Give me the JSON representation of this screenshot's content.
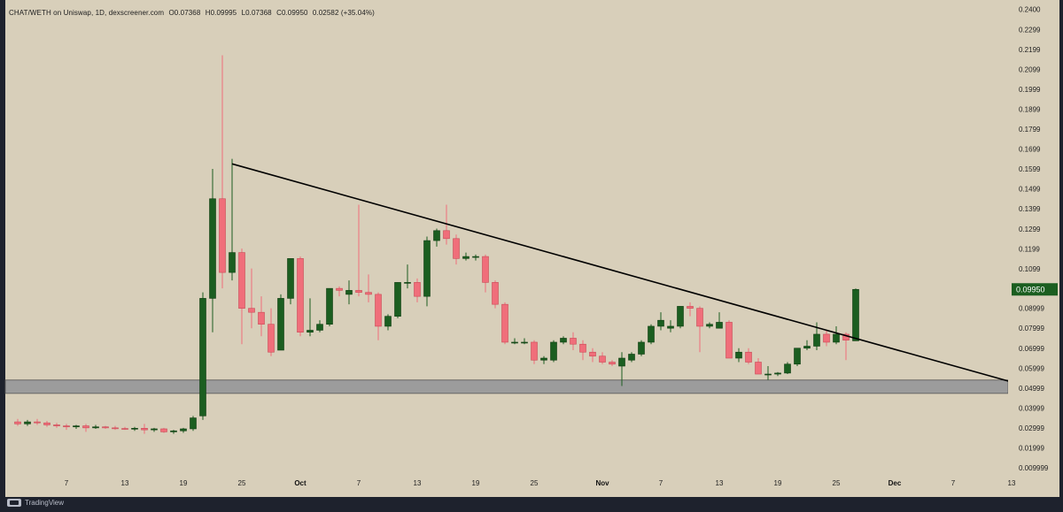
{
  "legend": {
    "symbol": "CHAT/WETH on Uniswap, 1D, dexscreener.com",
    "open": "O0.07368",
    "high": "H0.09995",
    "low": "L0.07368",
    "close": "C0.09950",
    "change": "0.02582 (+35.04%)"
  },
  "footer": {
    "brand": "TradingView"
  },
  "colors": {
    "background": "#d8cfba",
    "up": "#1b5e20",
    "down": "#f06e7a",
    "trendline": "#000000",
    "support_zone": "#9c9c9c",
    "price_tag": "#1b5e20"
  },
  "chart_data": {
    "type": "candlestick",
    "title": "",
    "xlabel": "",
    "ylabel": "",
    "y_tick_labels": [
      "0.2400",
      "0.2299",
      "0.2199",
      "0.2099",
      "0.1999",
      "0.1899",
      "0.1799",
      "0.1699",
      "0.1599",
      "0.1499",
      "0.1399",
      "0.1299",
      "0.1199",
      "0.1099",
      "0.09999",
      "0.08999",
      "0.07999",
      "0.06999",
      "0.05999",
      "0.04999",
      "0.03999",
      "0.02999",
      "0.01999",
      "0.009999"
    ],
    "y_tick_values": [
      0.24,
      0.2299,
      0.2199,
      0.2099,
      0.1999,
      0.1899,
      0.1799,
      0.1699,
      0.1599,
      0.1499,
      0.1399,
      0.1299,
      0.1199,
      0.1099,
      0.09999,
      0.08999,
      0.07999,
      0.06999,
      0.05999,
      0.04999,
      0.03999,
      0.02999,
      0.01999,
      0.009999
    ],
    "ylim": [
      0.0073,
      0.2412
    ],
    "x_tick_labels": [
      "7",
      "13",
      "19",
      "25",
      "Oct",
      "7",
      "13",
      "19",
      "25",
      "Nov",
      "7",
      "13",
      "19",
      "25",
      "Dec",
      "7",
      "13"
    ],
    "x_tick_dates": [
      "2023-09-07",
      "2023-09-13",
      "2023-09-19",
      "2023-09-25",
      "2023-10-01",
      "2023-10-07",
      "2023-10-13",
      "2023-10-19",
      "2023-10-25",
      "2023-11-01",
      "2023-11-07",
      "2023-11-13",
      "2023-11-19",
      "2023-11-25",
      "2023-12-01",
      "2023-12-07",
      "2023-12-13"
    ],
    "bold_x_ticks": [
      "Oct",
      "Nov",
      "Dec"
    ],
    "xlim": [
      "2023-09-02",
      "2023-12-14"
    ],
    "candles": [
      {
        "date": "2023-09-02",
        "o": 0.033,
        "h": 0.0345,
        "l": 0.031,
        "c": 0.032
      },
      {
        "date": "2023-09-03",
        "o": 0.032,
        "h": 0.034,
        "l": 0.031,
        "c": 0.033
      },
      {
        "date": "2023-09-04",
        "o": 0.033,
        "h": 0.0345,
        "l": 0.0315,
        "c": 0.0325
      },
      {
        "date": "2023-09-05",
        "o": 0.0325,
        "h": 0.0335,
        "l": 0.0305,
        "c": 0.0315
      },
      {
        "date": "2023-09-06",
        "o": 0.0315,
        "h": 0.0325,
        "l": 0.03,
        "c": 0.031
      },
      {
        "date": "2023-09-07",
        "o": 0.031,
        "h": 0.032,
        "l": 0.029,
        "c": 0.0305
      },
      {
        "date": "2023-09-08",
        "o": 0.0305,
        "h": 0.0315,
        "l": 0.0295,
        "c": 0.031
      },
      {
        "date": "2023-09-09",
        "o": 0.031,
        "h": 0.032,
        "l": 0.028,
        "c": 0.03
      },
      {
        "date": "2023-09-10",
        "o": 0.03,
        "h": 0.0315,
        "l": 0.0295,
        "c": 0.0305
      },
      {
        "date": "2023-09-11",
        "o": 0.0305,
        "h": 0.031,
        "l": 0.0295,
        "c": 0.03
      },
      {
        "date": "2023-09-12",
        "o": 0.03,
        "h": 0.031,
        "l": 0.029,
        "c": 0.0297
      },
      {
        "date": "2023-09-13",
        "o": 0.0297,
        "h": 0.0305,
        "l": 0.029,
        "c": 0.0295
      },
      {
        "date": "2023-09-14",
        "o": 0.0295,
        "h": 0.0305,
        "l": 0.0285,
        "c": 0.0298
      },
      {
        "date": "2023-09-15",
        "o": 0.0298,
        "h": 0.032,
        "l": 0.027,
        "c": 0.029
      },
      {
        "date": "2023-09-16",
        "o": 0.029,
        "h": 0.03,
        "l": 0.028,
        "c": 0.0295
      },
      {
        "date": "2023-09-17",
        "o": 0.0295,
        "h": 0.03,
        "l": 0.0275,
        "c": 0.028
      },
      {
        "date": "2023-09-18",
        "o": 0.028,
        "h": 0.029,
        "l": 0.027,
        "c": 0.0285
      },
      {
        "date": "2023-09-19",
        "o": 0.0285,
        "h": 0.03,
        "l": 0.0275,
        "c": 0.0295
      },
      {
        "date": "2023-09-20",
        "o": 0.0295,
        "h": 0.036,
        "l": 0.0285,
        "c": 0.035
      },
      {
        "date": "2023-09-21",
        "o": 0.036,
        "h": 0.098,
        "l": 0.034,
        "c": 0.095
      },
      {
        "date": "2023-09-22",
        "o": 0.095,
        "h": 0.16,
        "l": 0.078,
        "c": 0.145
      },
      {
        "date": "2023-09-23",
        "o": 0.145,
        "h": 0.217,
        "l": 0.1,
        "c": 0.108
      },
      {
        "date": "2023-09-24",
        "o": 0.108,
        "h": 0.165,
        "l": 0.104,
        "c": 0.118
      },
      {
        "date": "2023-09-25",
        "o": 0.118,
        "h": 0.12,
        "l": 0.072,
        "c": 0.09
      },
      {
        "date": "2023-09-26",
        "o": 0.09,
        "h": 0.11,
        "l": 0.08,
        "c": 0.088
      },
      {
        "date": "2023-09-27",
        "o": 0.088,
        "h": 0.096,
        "l": 0.076,
        "c": 0.082
      },
      {
        "date": "2023-09-28",
        "o": 0.082,
        "h": 0.09,
        "l": 0.066,
        "c": 0.068
      },
      {
        "date": "2023-09-29",
        "o": 0.069,
        "h": 0.097,
        "l": 0.069,
        "c": 0.095
      },
      {
        "date": "2023-09-30",
        "o": 0.095,
        "h": 0.115,
        "l": 0.092,
        "c": 0.115
      },
      {
        "date": "2023-10-01",
        "o": 0.115,
        "h": 0.116,
        "l": 0.076,
        "c": 0.078
      },
      {
        "date": "2023-10-02",
        "o": 0.078,
        "h": 0.095,
        "l": 0.076,
        "c": 0.079
      },
      {
        "date": "2023-10-03",
        "o": 0.079,
        "h": 0.084,
        "l": 0.078,
        "c": 0.082
      },
      {
        "date": "2023-10-04",
        "o": 0.082,
        "h": 0.1,
        "l": 0.081,
        "c": 0.1
      },
      {
        "date": "2023-10-05",
        "o": 0.1,
        "h": 0.101,
        "l": 0.096,
        "c": 0.099
      },
      {
        "date": "2023-10-06",
        "o": 0.097,
        "h": 0.104,
        "l": 0.092,
        "c": 0.099
      },
      {
        "date": "2023-10-07",
        "o": 0.099,
        "h": 0.142,
        "l": 0.096,
        "c": 0.098
      },
      {
        "date": "2023-10-08",
        "o": 0.098,
        "h": 0.107,
        "l": 0.093,
        "c": 0.097
      },
      {
        "date": "2023-10-09",
        "o": 0.097,
        "h": 0.098,
        "l": 0.074,
        "c": 0.081
      },
      {
        "date": "2023-10-10",
        "o": 0.081,
        "h": 0.087,
        "l": 0.079,
        "c": 0.086
      },
      {
        "date": "2023-10-11",
        "o": 0.086,
        "h": 0.103,
        "l": 0.085,
        "c": 0.103
      },
      {
        "date": "2023-10-12",
        "o": 0.103,
        "h": 0.112,
        "l": 0.1,
        "c": 0.103
      },
      {
        "date": "2023-10-13",
        "o": 0.103,
        "h": 0.105,
        "l": 0.093,
        "c": 0.096
      },
      {
        "date": "2023-10-14",
        "o": 0.096,
        "h": 0.126,
        "l": 0.091,
        "c": 0.124
      },
      {
        "date": "2023-10-15",
        "o": 0.124,
        "h": 0.13,
        "l": 0.121,
        "c": 0.129
      },
      {
        "date": "2023-10-16",
        "o": 0.129,
        "h": 0.142,
        "l": 0.122,
        "c": 0.125
      },
      {
        "date": "2023-10-17",
        "o": 0.125,
        "h": 0.127,
        "l": 0.112,
        "c": 0.115
      },
      {
        "date": "2023-10-18",
        "o": 0.115,
        "h": 0.118,
        "l": 0.114,
        "c": 0.116
      },
      {
        "date": "2023-10-19",
        "o": 0.116,
        "h": 0.117,
        "l": 0.114,
        "c": 0.116
      },
      {
        "date": "2023-10-20",
        "o": 0.116,
        "h": 0.117,
        "l": 0.098,
        "c": 0.103
      },
      {
        "date": "2023-10-21",
        "o": 0.103,
        "h": 0.104,
        "l": 0.09,
        "c": 0.092
      },
      {
        "date": "2023-10-22",
        "o": 0.092,
        "h": 0.093,
        "l": 0.072,
        "c": 0.073
      },
      {
        "date": "2023-10-23",
        "o": 0.073,
        "h": 0.075,
        "l": 0.072,
        "c": 0.073
      },
      {
        "date": "2023-10-24",
        "o": 0.073,
        "h": 0.075,
        "l": 0.072,
        "c": 0.073
      },
      {
        "date": "2023-10-25",
        "o": 0.073,
        "h": 0.074,
        "l": 0.062,
        "c": 0.064
      },
      {
        "date": "2023-10-26",
        "o": 0.064,
        "h": 0.066,
        "l": 0.062,
        "c": 0.065
      },
      {
        "date": "2023-10-27",
        "o": 0.064,
        "h": 0.074,
        "l": 0.063,
        "c": 0.073
      },
      {
        "date": "2023-10-28",
        "o": 0.073,
        "h": 0.076,
        "l": 0.072,
        "c": 0.075
      },
      {
        "date": "2023-10-29",
        "o": 0.075,
        "h": 0.078,
        "l": 0.069,
        "c": 0.072
      },
      {
        "date": "2023-10-30",
        "o": 0.072,
        "h": 0.074,
        "l": 0.064,
        "c": 0.068
      },
      {
        "date": "2023-10-31",
        "o": 0.068,
        "h": 0.07,
        "l": 0.063,
        "c": 0.066
      },
      {
        "date": "2023-11-01",
        "o": 0.066,
        "h": 0.068,
        "l": 0.062,
        "c": 0.063
      },
      {
        "date": "2023-11-02",
        "o": 0.063,
        "h": 0.064,
        "l": 0.061,
        "c": 0.062
      },
      {
        "date": "2023-11-03",
        "o": 0.061,
        "h": 0.068,
        "l": 0.051,
        "c": 0.065
      },
      {
        "date": "2023-11-04",
        "o": 0.064,
        "h": 0.068,
        "l": 0.063,
        "c": 0.067
      },
      {
        "date": "2023-11-05",
        "o": 0.067,
        "h": 0.074,
        "l": 0.066,
        "c": 0.073
      },
      {
        "date": "2023-11-06",
        "o": 0.073,
        "h": 0.082,
        "l": 0.072,
        "c": 0.081
      },
      {
        "date": "2023-11-07",
        "o": 0.081,
        "h": 0.088,
        "l": 0.079,
        "c": 0.084
      },
      {
        "date": "2023-11-08",
        "o": 0.08,
        "h": 0.084,
        "l": 0.078,
        "c": 0.081
      },
      {
        "date": "2023-11-09",
        "o": 0.081,
        "h": 0.091,
        "l": 0.08,
        "c": 0.091
      },
      {
        "date": "2023-11-10",
        "o": 0.091,
        "h": 0.093,
        "l": 0.086,
        "c": 0.09
      },
      {
        "date": "2023-11-11",
        "o": 0.09,
        "h": 0.091,
        "l": 0.068,
        "c": 0.081
      },
      {
        "date": "2023-11-12",
        "o": 0.081,
        "h": 0.083,
        "l": 0.08,
        "c": 0.082
      },
      {
        "date": "2023-11-13",
        "o": 0.08,
        "h": 0.088,
        "l": 0.08,
        "c": 0.083
      },
      {
        "date": "2023-11-14",
        "o": 0.083,
        "h": 0.084,
        "l": 0.065,
        "c": 0.065
      },
      {
        "date": "2023-11-15",
        "o": 0.065,
        "h": 0.07,
        "l": 0.063,
        "c": 0.068
      },
      {
        "date": "2023-11-16",
        "o": 0.068,
        "h": 0.07,
        "l": 0.062,
        "c": 0.063
      },
      {
        "date": "2023-11-17",
        "o": 0.063,
        "h": 0.065,
        "l": 0.057,
        "c": 0.057
      },
      {
        "date": "2023-11-18",
        "o": 0.057,
        "h": 0.061,
        "l": 0.054,
        "c": 0.057
      },
      {
        "date": "2023-11-19",
        "o": 0.057,
        "h": 0.058,
        "l": 0.056,
        "c": 0.0575
      },
      {
        "date": "2023-11-20",
        "o": 0.0575,
        "h": 0.063,
        "l": 0.057,
        "c": 0.062
      },
      {
        "date": "2023-11-21",
        "o": 0.062,
        "h": 0.07,
        "l": 0.061,
        "c": 0.07
      },
      {
        "date": "2023-11-22",
        "o": 0.07,
        "h": 0.074,
        "l": 0.069,
        "c": 0.071
      },
      {
        "date": "2023-11-23",
        "o": 0.071,
        "h": 0.083,
        "l": 0.069,
        "c": 0.077
      },
      {
        "date": "2023-11-24",
        "o": 0.077,
        "h": 0.079,
        "l": 0.071,
        "c": 0.073
      },
      {
        "date": "2023-11-25",
        "o": 0.073,
        "h": 0.081,
        "l": 0.072,
        "c": 0.077
      },
      {
        "date": "2023-11-26",
        "o": 0.077,
        "h": 0.078,
        "l": 0.064,
        "c": 0.074
      },
      {
        "date": "2023-11-27",
        "o": 0.07368,
        "h": 0.09995,
        "l": 0.07368,
        "c": 0.0995
      }
    ],
    "trendline": {
      "x1": "2023-09-24",
      "y1": 0.1625,
      "x2": "2023-12-13",
      "y2": 0.053
    },
    "support_zone": {
      "y_low": 0.0473,
      "y_high": 0.054
    },
    "last_price_label": "0.09950",
    "last_price": 0.0995,
    "grid": false,
    "legend_position": "top-left"
  }
}
